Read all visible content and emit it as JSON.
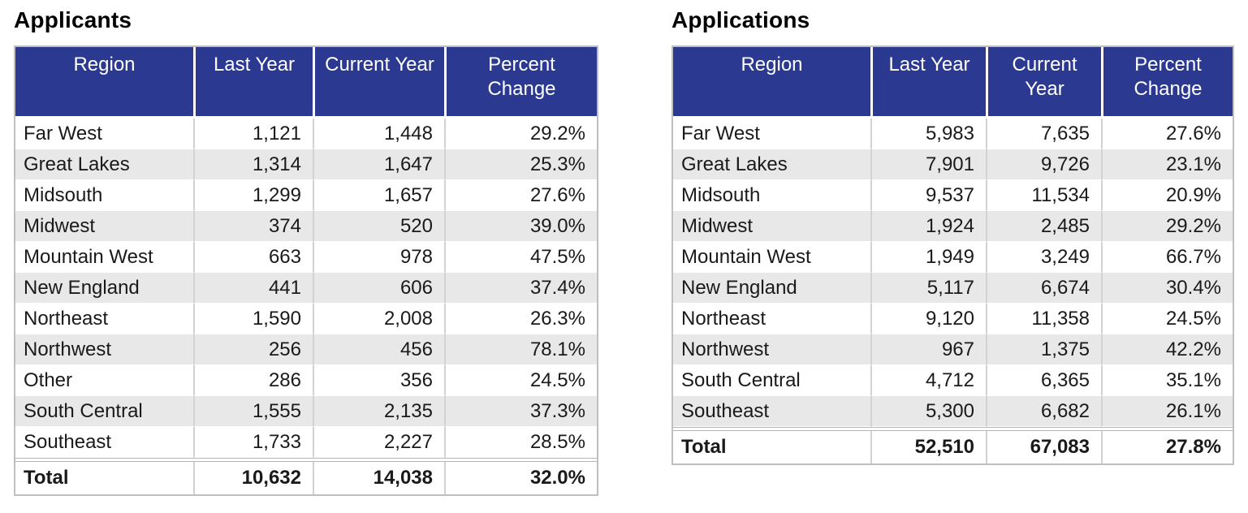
{
  "colors": {
    "header_bg": "#2B3990",
    "header_text": "#ffffff",
    "stripe": "#e8e8e8",
    "outer_border": "#bfbfbf",
    "body_text": "#1a1a1a"
  },
  "tables": [
    {
      "title": "Applicants",
      "columns": [
        "Region",
        "Last Year",
        "Current Year",
        "Percent Change"
      ],
      "rows": [
        [
          "Far West",
          "1,121",
          "1,448",
          "29.2%"
        ],
        [
          "Great Lakes",
          "1,314",
          "1,647",
          "25.3%"
        ],
        [
          "Midsouth",
          "1,299",
          "1,657",
          "27.6%"
        ],
        [
          "Midwest",
          "374",
          "520",
          "39.0%"
        ],
        [
          "Mountain West",
          "663",
          "978",
          "47.5%"
        ],
        [
          "New England",
          "441",
          "606",
          "37.4%"
        ],
        [
          "Northeast",
          "1,590",
          "2,008",
          "26.3%"
        ],
        [
          "Northwest",
          "256",
          "456",
          "78.1%"
        ],
        [
          "Other",
          "286",
          "356",
          "24.5%"
        ],
        [
          "South Central",
          "1,555",
          "2,135",
          "37.3%"
        ],
        [
          "Southeast",
          "1,733",
          "2,227",
          "28.5%"
        ]
      ],
      "total": [
        "Total",
        "10,632",
        "14,038",
        "32.0%"
      ],
      "total_color": "#000000"
    },
    {
      "title": "Applications",
      "columns": [
        "Region",
        "Last Year",
        "Current Year",
        "Percent Change"
      ],
      "rows": [
        [
          "Far West",
          "5,983",
          "7,635",
          "27.6%"
        ],
        [
          "Great Lakes",
          "7,901",
          "9,726",
          "23.1%"
        ],
        [
          "Midsouth",
          "9,537",
          "11,534",
          "20.9%"
        ],
        [
          "Midwest",
          "1,924",
          "2,485",
          "29.2%"
        ],
        [
          "Mountain West",
          "1,949",
          "3,249",
          "66.7%"
        ],
        [
          "New England",
          "5,117",
          "6,674",
          "30.4%"
        ],
        [
          "Northeast",
          "9,120",
          "11,358",
          "24.5%"
        ],
        [
          "Northwest",
          "967",
          "1,375",
          "42.2%"
        ],
        [
          "South Central",
          "4,712",
          "6,365",
          "35.1%"
        ],
        [
          "Southeast",
          "5,300",
          "6,682",
          "26.1%"
        ]
      ],
      "total": [
        "Total",
        "52,510",
        "67,083",
        "27.8%"
      ],
      "total_color": "#595959"
    }
  ]
}
